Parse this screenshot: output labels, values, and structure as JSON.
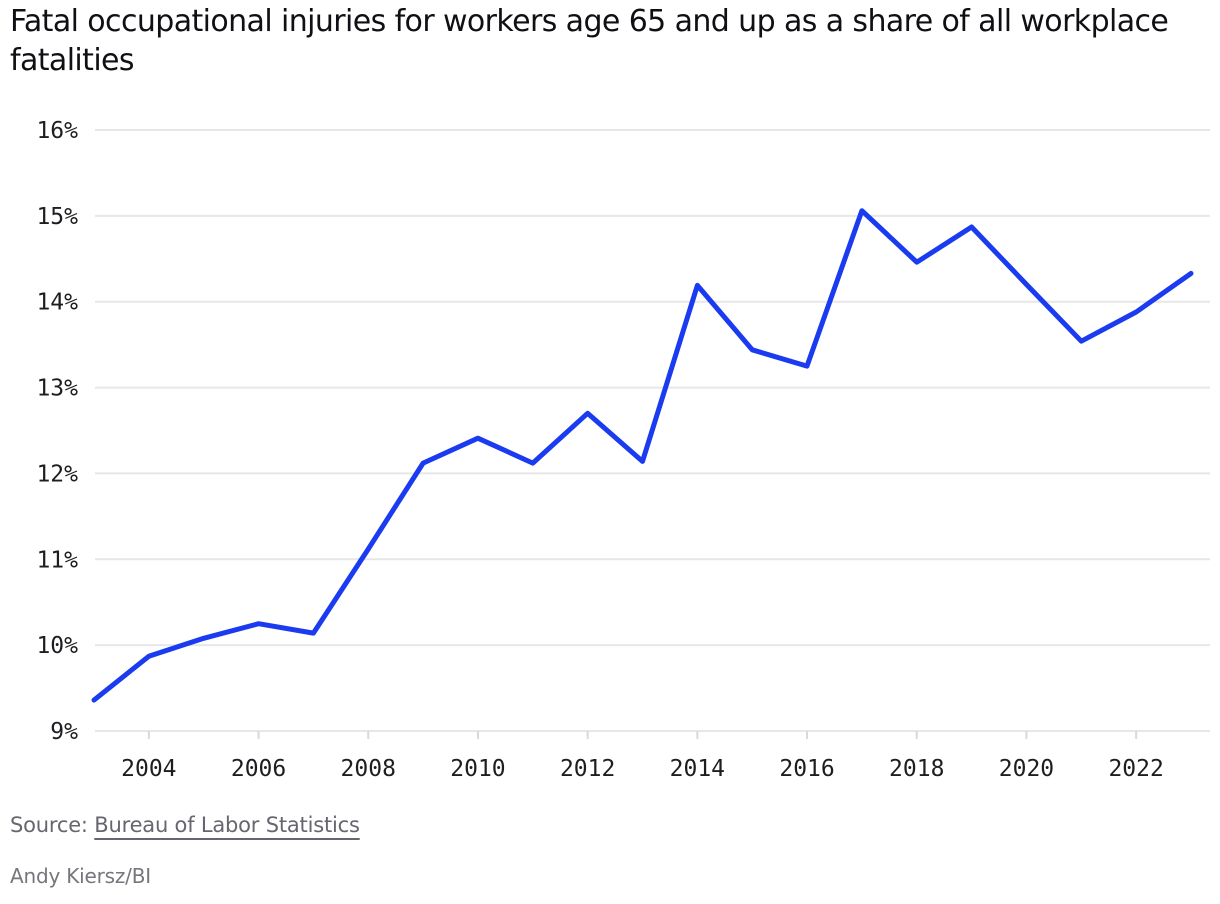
{
  "title": "Fatal occupational injuries for workers age 65 and up as a share of all workplace fatalities",
  "source": {
    "prefix": "Source: ",
    "link_label": "Bureau of Labor Statistics"
  },
  "credit": "Andy Kiersz/BI",
  "colors": {
    "line": "#1a3bf0",
    "gridline": "#e7e7e7",
    "tick": "#d9d9d9",
    "axis_text": "#1e1e22",
    "muted_text": "#66666e"
  },
  "chart_data": {
    "type": "line",
    "title": "Fatal occupational injuries for workers age 65 and up as a share of all workplace fatalities",
    "x": [
      2003,
      2004,
      2005,
      2006,
      2007,
      2008,
      2009,
      2010,
      2011,
      2012,
      2013,
      2014,
      2015,
      2016,
      2017,
      2018,
      2019,
      2020,
      2021,
      2022,
      2023
    ],
    "values": [
      9.36,
      9.87,
      10.08,
      10.25,
      10.14,
      11.12,
      12.12,
      12.41,
      12.12,
      12.7,
      12.14,
      14.19,
      13.44,
      13.25,
      15.06,
      14.46,
      14.87,
      14.2,
      13.54,
      13.88,
      14.33
    ],
    "xlabel": "",
    "ylabel": "",
    "ylim": [
      9,
      16
    ],
    "xlim": [
      2003,
      2023
    ],
    "yticks": [
      9,
      10,
      11,
      12,
      13,
      14,
      15,
      16
    ],
    "ytick_labels": [
      "9%",
      "10%",
      "11%",
      "12%",
      "13%",
      "14%",
      "15%",
      "16%"
    ],
    "xticks": [
      2004,
      2006,
      2008,
      2010,
      2012,
      2014,
      2016,
      2018,
      2020,
      2022
    ],
    "xtick_labels": [
      "2004",
      "2006",
      "2008",
      "2010",
      "2012",
      "2014",
      "2016",
      "2018",
      "2020",
      "2022"
    ],
    "grid": "horizontal-only",
    "legend": "none"
  }
}
